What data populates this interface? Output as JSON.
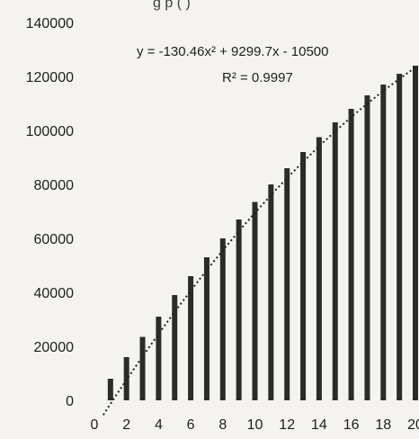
{
  "chart_data": {
    "type": "bar",
    "title": "",
    "title_fragment": "g   p  (   )",
    "xlabel": "",
    "ylabel": "",
    "x": [
      1,
      2,
      3,
      4,
      5,
      6,
      7,
      8,
      9,
      10,
      11,
      12,
      13,
      14,
      15,
      16,
      17,
      18,
      19,
      20
    ],
    "values": [
      8000,
      16000,
      23500,
      31000,
      39000,
      46000,
      53000,
      60000,
      67000,
      73500,
      80000,
      86000,
      92000,
      97500,
      103000,
      108000,
      113000,
      117000,
      121000,
      124000
    ],
    "xlim": [
      0,
      20
    ],
    "ylim": [
      0,
      140000
    ],
    "x_ticks": [
      "0",
      "2",
      "4",
      "6",
      "8",
      "10",
      "12",
      "14",
      "16",
      "18",
      "20"
    ],
    "y_ticks": [
      "0",
      "20000",
      "40000",
      "60000",
      "80000",
      "100000",
      "120000",
      "140000"
    ],
    "trendline": {
      "kind": "polynomial",
      "a": -130.46,
      "b": 9299.7,
      "c": -10500,
      "equation": "y = -130.46x² + 9299.7x - 10500",
      "r_squared": "R² = 0.9997"
    },
    "grid": false,
    "legend": "none",
    "bar_color": "#2b2b2b",
    "trend_color": "#222222"
  }
}
